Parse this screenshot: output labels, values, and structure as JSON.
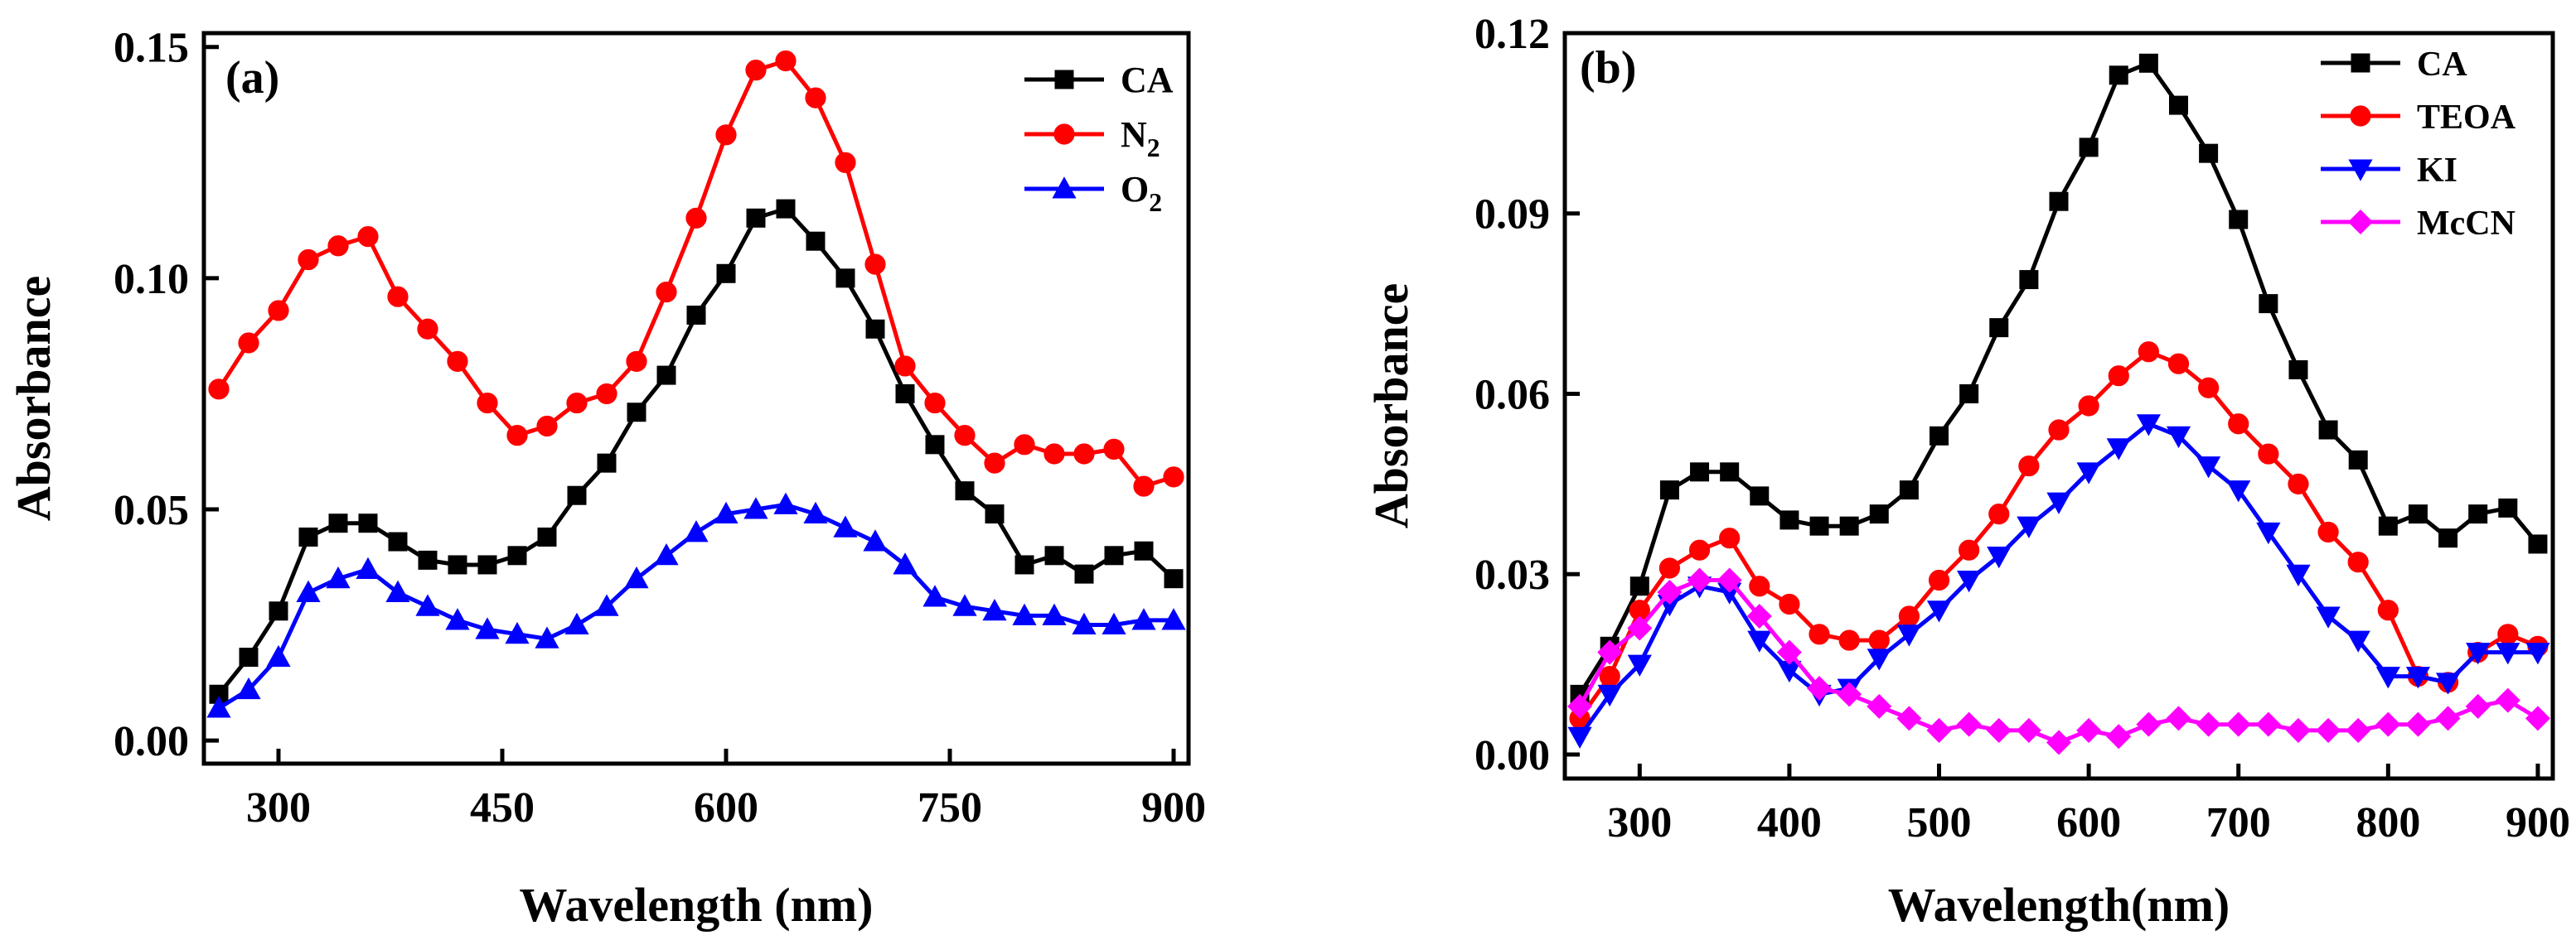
{
  "chart_data": [
    {
      "type": "line",
      "panel_label": "(a)",
      "xlabel": "Wavelength (nm)",
      "ylabel": "Absorbance",
      "xlim": [
        250,
        910
      ],
      "ylim": [
        -0.005,
        0.153
      ],
      "xticks": [
        300,
        450,
        600,
        750,
        900
      ],
      "xtick_labels": [
        "300",
        "450",
        "600",
        "750",
        "900"
      ],
      "yticks": [
        0.0,
        0.05,
        0.1,
        0.15
      ],
      "ytick_labels": [
        "0.00",
        "0.05",
        "0.10",
        "0.15"
      ],
      "legend_position": "top-right",
      "x": [
        260,
        280,
        300,
        320,
        340,
        360,
        380,
        400,
        420,
        440,
        460,
        480,
        500,
        520,
        540,
        560,
        580,
        600,
        620,
        640,
        660,
        680,
        700,
        720,
        740,
        760,
        780,
        800,
        820,
        840,
        860,
        880,
        900
      ],
      "series": [
        {
          "name": "CA",
          "name_main": "CA",
          "name_sub": "",
          "color": "#000000",
          "marker": "square",
          "values": [
            0.01,
            0.018,
            0.028,
            0.044,
            0.047,
            0.047,
            0.043,
            0.039,
            0.038,
            0.038,
            0.04,
            0.044,
            0.053,
            0.06,
            0.071,
            0.079,
            0.092,
            0.101,
            0.113,
            0.115,
            0.108,
            0.1,
            0.089,
            0.075,
            0.064,
            0.054,
            0.049,
            0.038,
            0.04,
            0.036,
            0.04,
            0.041,
            0.035
          ]
        },
        {
          "name": "N2",
          "name_main": "N",
          "name_sub": "2",
          "color": "#ff0000",
          "marker": "circle",
          "values": [
            0.076,
            0.086,
            0.093,
            0.104,
            0.107,
            0.109,
            0.096,
            0.089,
            0.082,
            0.073,
            0.066,
            0.068,
            0.073,
            0.075,
            0.082,
            0.097,
            0.113,
            0.131,
            0.145,
            0.147,
            0.139,
            0.125,
            0.103,
            0.081,
            0.073,
            0.066,
            0.06,
            0.064,
            0.062,
            0.062,
            0.063,
            0.055,
            0.057
          ]
        },
        {
          "name": "O2",
          "name_main": "O",
          "name_sub": "2",
          "color": "#0000ff",
          "marker": "triangle-up",
          "values": [
            0.007,
            0.011,
            0.018,
            0.032,
            0.035,
            0.037,
            0.032,
            0.029,
            0.026,
            0.024,
            0.023,
            0.022,
            0.025,
            0.029,
            0.035,
            0.04,
            0.045,
            0.049,
            0.05,
            0.051,
            0.049,
            0.046,
            0.043,
            0.038,
            0.031,
            0.029,
            0.028,
            0.027,
            0.027,
            0.025,
            0.025,
            0.026,
            0.026
          ]
        }
      ]
    },
    {
      "type": "line",
      "panel_label": "(b)",
      "xlabel": "Wavelength(nm)",
      "ylabel": "Absorbance",
      "xlim": [
        250,
        910
      ],
      "ylim": [
        -0.004,
        0.12
      ],
      "xticks": [
        300,
        400,
        500,
        600,
        700,
        800,
        900
      ],
      "xtick_labels": [
        "300",
        "400",
        "500",
        "600",
        "700",
        "800",
        "900"
      ],
      "yticks": [
        0.0,
        0.03,
        0.06,
        0.09,
        0.12
      ],
      "ytick_labels": [
        "0.00",
        "0.03",
        "0.06",
        "0.09",
        "0.12"
      ],
      "legend_position": "top-right",
      "x": [
        260,
        280,
        300,
        320,
        340,
        360,
        380,
        400,
        420,
        440,
        460,
        480,
        500,
        520,
        540,
        560,
        580,
        600,
        620,
        640,
        660,
        680,
        700,
        720,
        740,
        760,
        780,
        800,
        820,
        840,
        860,
        880,
        900
      ],
      "series": [
        {
          "name": "CA",
          "name_main": "CA",
          "name_sub": "",
          "color": "#000000",
          "marker": "square",
          "values": [
            0.01,
            0.018,
            0.028,
            0.044,
            0.047,
            0.047,
            0.043,
            0.039,
            0.038,
            0.038,
            0.04,
            0.044,
            0.053,
            0.06,
            0.071,
            0.079,
            0.092,
            0.101,
            0.113,
            0.115,
            0.108,
            0.1,
            0.089,
            0.075,
            0.064,
            0.054,
            0.049,
            0.038,
            0.04,
            0.036,
            0.04,
            0.041,
            0.035
          ]
        },
        {
          "name": "TEOA",
          "name_main": "TEOA",
          "name_sub": "",
          "color": "#ff0000",
          "marker": "circle",
          "values": [
            0.006,
            0.013,
            0.024,
            0.031,
            0.034,
            0.036,
            0.028,
            0.025,
            0.02,
            0.019,
            0.019,
            0.023,
            0.029,
            0.034,
            0.04,
            0.048,
            0.054,
            0.058,
            0.063,
            0.067,
            0.065,
            0.061,
            0.055,
            0.05,
            0.045,
            0.037,
            0.032,
            0.024,
            0.013,
            0.012,
            0.017,
            0.02,
            0.018
          ]
        },
        {
          "name": "KI",
          "name_main": "KI",
          "name_sub": "",
          "color": "#0000ff",
          "marker": "triangle-down",
          "values": [
            0.003,
            0.01,
            0.015,
            0.025,
            0.028,
            0.027,
            0.019,
            0.014,
            0.01,
            0.011,
            0.016,
            0.02,
            0.024,
            0.029,
            0.033,
            0.038,
            0.042,
            0.047,
            0.051,
            0.055,
            0.053,
            0.048,
            0.044,
            0.037,
            0.03,
            0.023,
            0.019,
            0.013,
            0.013,
            0.012,
            0.017,
            0.017,
            0.017
          ]
        },
        {
          "name": "McCN",
          "name_main": "McCN",
          "name_sub": "",
          "color": "#ff00ff",
          "marker": "diamond",
          "values": [
            0.008,
            0.017,
            0.021,
            0.027,
            0.029,
            0.029,
            0.023,
            0.017,
            0.011,
            0.01,
            0.008,
            0.006,
            0.004,
            0.005,
            0.004,
            0.004,
            0.002,
            0.004,
            0.003,
            0.005,
            0.006,
            0.005,
            0.005,
            0.005,
            0.004,
            0.004,
            0.004,
            0.005,
            0.005,
            0.006,
            0.008,
            0.009,
            0.006
          ]
        }
      ]
    }
  ]
}
